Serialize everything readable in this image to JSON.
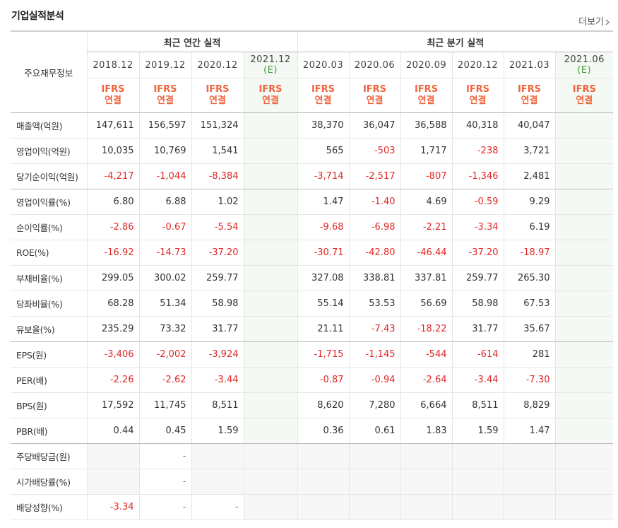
{
  "header": {
    "title": "기업실적분석",
    "more": "더보기"
  },
  "table": {
    "row_header": "주요재무정보",
    "groups": [
      {
        "title": "최근 연간 실적",
        "periods": [
          {
            "date": "2018.12",
            "accounting": "IFRS",
            "basis": "연결"
          },
          {
            "date": "2019.12",
            "accounting": "IFRS",
            "basis": "연결"
          },
          {
            "date": "2020.12",
            "accounting": "IFRS",
            "basis": "연결"
          },
          {
            "date": "2021.12",
            "estimate": "(E)",
            "accounting": "IFRS",
            "basis": "연결"
          }
        ]
      },
      {
        "title": "최근 분기 실적",
        "periods": [
          {
            "date": "2020.03",
            "accounting": "IFRS",
            "basis": "연결"
          },
          {
            "date": "2020.06",
            "accounting": "IFRS",
            "basis": "연결"
          },
          {
            "date": "2020.09",
            "accounting": "IFRS",
            "basis": "연결"
          },
          {
            "date": "2020.12",
            "accounting": "IFRS",
            "basis": "연결"
          },
          {
            "date": "2021.03",
            "accounting": "IFRS",
            "basis": "연결"
          },
          {
            "date": "2021.06",
            "estimate": "(E)",
            "accounting": "IFRS",
            "basis": "연결"
          }
        ]
      }
    ],
    "rows": [
      {
        "label": "매출액(억원)",
        "cells": [
          "147,611",
          "156,597",
          "151,324",
          null,
          "38,370",
          "36,047",
          "36,588",
          "40,318",
          "40,047",
          null
        ]
      },
      {
        "label": "영업이익(억원)",
        "cells": [
          "10,035",
          "10,769",
          "1,541",
          null,
          "565",
          "-503",
          "1,717",
          "-238",
          "3,721",
          null
        ]
      },
      {
        "label": "당기순이익(억원)",
        "cells": [
          "-4,217",
          "-1,044",
          "-8,384",
          null,
          "-3,714",
          "-2,517",
          "-807",
          "-1,346",
          "2,481",
          null
        ]
      },
      {
        "label": "영업이익률(%)",
        "cells": [
          "6.80",
          "6.88",
          "1.02",
          null,
          "1.47",
          "-1.40",
          "4.69",
          "-0.59",
          "9.29",
          null
        ]
      },
      {
        "label": "순이익률(%)",
        "cells": [
          "-2.86",
          "-0.67",
          "-5.54",
          null,
          "-9.68",
          "-6.98",
          "-2.21",
          "-3.34",
          "6.19",
          null
        ]
      },
      {
        "label": "ROE(%)",
        "cells": [
          "-16.92",
          "-14.73",
          "-37.20",
          null,
          "-30.71",
          "-42.80",
          "-46.44",
          "-37.20",
          "-18.97",
          null
        ]
      },
      {
        "label": "부채비율(%)",
        "cells": [
          "299.05",
          "300.02",
          "259.77",
          null,
          "327.08",
          "338.81",
          "337.81",
          "259.77",
          "265.30",
          null
        ]
      },
      {
        "label": "당좌비율(%)",
        "cells": [
          "68.28",
          "51.34",
          "58.98",
          null,
          "55.14",
          "53.53",
          "56.69",
          "58.98",
          "67.53",
          null
        ]
      },
      {
        "label": "유보율(%)",
        "cells": [
          "235.29",
          "73.32",
          "31.77",
          null,
          "21.11",
          "-7.43",
          "-18.22",
          "31.77",
          "35.67",
          null
        ]
      },
      {
        "label": "EPS(원)",
        "cells": [
          "-3,406",
          "-2,002",
          "-3,924",
          null,
          "-1,715",
          "-1,145",
          "-544",
          "-614",
          "281",
          null
        ]
      },
      {
        "label": "PER(배)",
        "cells": [
          "-2.26",
          "-2.62",
          "-3.44",
          null,
          "-0.87",
          "-0.94",
          "-2.64",
          "-3.44",
          "-7.30",
          null
        ]
      },
      {
        "label": "BPS(원)",
        "cells": [
          "17,592",
          "11,745",
          "8,511",
          null,
          "8,620",
          "7,280",
          "6,664",
          "8,511",
          "8,829",
          null
        ]
      },
      {
        "label": "PBR(배)",
        "cells": [
          "0.44",
          "0.45",
          "1.59",
          null,
          "0.36",
          "0.61",
          "1.83",
          "1.59",
          "1.47",
          null
        ]
      },
      {
        "label": "주당배당금(원)",
        "cells": [
          null,
          "-",
          null,
          null,
          null,
          null,
          null,
          null,
          null,
          null
        ]
      },
      {
        "label": "시가배당률(%)",
        "cells": [
          null,
          "-",
          null,
          null,
          null,
          null,
          null,
          null,
          null,
          null
        ]
      },
      {
        "label": "배당성향(%)",
        "cells": [
          "-3.34",
          "-",
          "-",
          null,
          null,
          null,
          null,
          null,
          null,
          null
        ]
      }
    ]
  }
}
